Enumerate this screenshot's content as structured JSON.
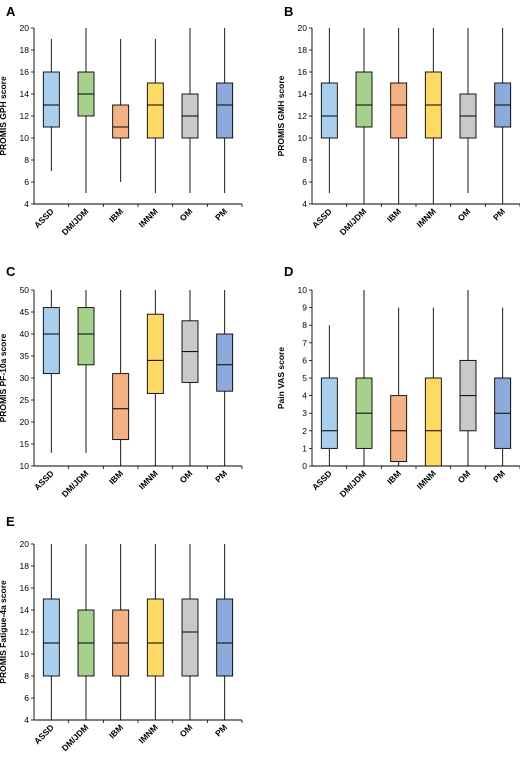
{
  "chart_data": [
    {
      "type": "boxplot",
      "panel": "A",
      "ylabel": "PROMIS GPH score",
      "ylim": [
        4,
        20
      ],
      "yticks": [
        4,
        6,
        8,
        10,
        12,
        14,
        16,
        18,
        20
      ],
      "categories": [
        "ASSD",
        "DM/JDM",
        "IBM",
        "IMNM",
        "OM",
        "PM"
      ],
      "boxes": [
        {
          "min": 7,
          "q1": 11,
          "median": 13,
          "q3": 16,
          "max": 19
        },
        {
          "min": 5,
          "q1": 12,
          "median": 14,
          "q3": 16,
          "max": 20
        },
        {
          "min": 6,
          "q1": 10,
          "median": 11,
          "q3": 13,
          "max": 19
        },
        {
          "min": 5,
          "q1": 10,
          "median": 13,
          "q3": 15,
          "max": 19
        },
        {
          "min": 5,
          "q1": 10,
          "median": 12,
          "q3": 14,
          "max": 20
        },
        {
          "min": 5,
          "q1": 10,
          "median": 13,
          "q3": 15,
          "max": 20
        }
      ]
    },
    {
      "type": "boxplot",
      "panel": "B",
      "ylabel": "PROMIS GMH score",
      "ylim": [
        4,
        20
      ],
      "yticks": [
        4,
        6,
        8,
        10,
        12,
        14,
        16,
        18,
        20
      ],
      "categories": [
        "ASSD",
        "DM/JDM",
        "IBM",
        "IMNM",
        "OM",
        "PM"
      ],
      "boxes": [
        {
          "min": 5,
          "q1": 10,
          "median": 12,
          "q3": 15,
          "max": 20
        },
        {
          "min": 4,
          "q1": 11,
          "median": 13,
          "q3": 16,
          "max": 20
        },
        {
          "min": 4,
          "q1": 10,
          "median": 13,
          "q3": 15,
          "max": 20
        },
        {
          "min": 4,
          "q1": 10,
          "median": 13,
          "q3": 16,
          "max": 20
        },
        {
          "min": 5,
          "q1": 10,
          "median": 12,
          "q3": 14,
          "max": 20
        },
        {
          "min": 4,
          "q1": 11,
          "median": 13,
          "q3": 15,
          "max": 20
        }
      ]
    },
    {
      "type": "boxplot",
      "panel": "C",
      "ylabel": "PROMIS PF-10a score",
      "ylim": [
        10,
        50
      ],
      "yticks": [
        10,
        15,
        20,
        25,
        30,
        35,
        40,
        45,
        50
      ],
      "categories": [
        "ASSD",
        "DM/JDM",
        "IBM",
        "IMNM",
        "OM",
        "PM"
      ],
      "boxes": [
        {
          "min": 13,
          "q1": 31,
          "median": 40,
          "q3": 46,
          "max": 50
        },
        {
          "min": 13,
          "q1": 33,
          "median": 40,
          "q3": 46,
          "max": 50
        },
        {
          "min": 10,
          "q1": 16,
          "median": 23,
          "q3": 31,
          "max": 50
        },
        {
          "min": 10,
          "q1": 26.5,
          "median": 34,
          "q3": 44.5,
          "max": 50
        },
        {
          "min": 10,
          "q1": 29,
          "median": 36,
          "q3": 43,
          "max": 50
        },
        {
          "min": 10,
          "q1": 27,
          "median": 33,
          "q3": 40,
          "max": 50
        }
      ]
    },
    {
      "type": "boxplot",
      "panel": "D",
      "ylabel": "Pain VAS score",
      "ylim": [
        0,
        10
      ],
      "yticks": [
        0,
        1,
        2,
        3,
        4,
        5,
        6,
        7,
        8,
        9,
        10
      ],
      "categories": [
        "ASSD",
        "DM/JDM",
        "IBM",
        "IMNM",
        "OM",
        "PM"
      ],
      "boxes": [
        {
          "min": 0,
          "q1": 1,
          "median": 2,
          "q3": 5,
          "max": 8
        },
        {
          "min": 0,
          "q1": 1,
          "median": 3,
          "q3": 5,
          "max": 10
        },
        {
          "min": 0,
          "q1": 0.25,
          "median": 2,
          "q3": 4,
          "max": 9
        },
        {
          "min": 0,
          "q1": 0,
          "median": 2,
          "q3": 5,
          "max": 9
        },
        {
          "min": 0,
          "q1": 2,
          "median": 4,
          "q3": 6,
          "max": 10
        },
        {
          "min": 0,
          "q1": 1,
          "median": 3,
          "q3": 5,
          "max": 9
        }
      ]
    },
    {
      "type": "boxplot",
      "panel": "E",
      "ylabel": "PROMIS Fatigue-4a score",
      "ylim": [
        4,
        20
      ],
      "yticks": [
        4,
        6,
        8,
        10,
        12,
        14,
        16,
        18,
        20
      ],
      "categories": [
        "ASSD",
        "DM/JDM",
        "IBM",
        "IMNM",
        "OM",
        "PM"
      ],
      "boxes": [
        {
          "min": 4,
          "q1": 8,
          "median": 11,
          "q3": 15,
          "max": 20
        },
        {
          "min": 4,
          "q1": 8,
          "median": 11,
          "q3": 14,
          "max": 20
        },
        {
          "min": 4,
          "q1": 8,
          "median": 11,
          "q3": 14,
          "max": 20
        },
        {
          "min": 4,
          "q1": 8,
          "median": 11,
          "q3": 15,
          "max": 20
        },
        {
          "min": 4,
          "q1": 8,
          "median": 12,
          "q3": 15,
          "max": 20
        },
        {
          "min": 4,
          "q1": 8,
          "median": 11,
          "q3": 15,
          "max": 20
        }
      ]
    }
  ],
  "colors": {
    "ASSD": "#a9cfee",
    "DM/JDM": "#a8d08d",
    "IBM": "#f4b183",
    "IMNM": "#ffd966",
    "OM": "#c9c9c9",
    "PM": "#8eaadb",
    "stroke": "#000000"
  }
}
